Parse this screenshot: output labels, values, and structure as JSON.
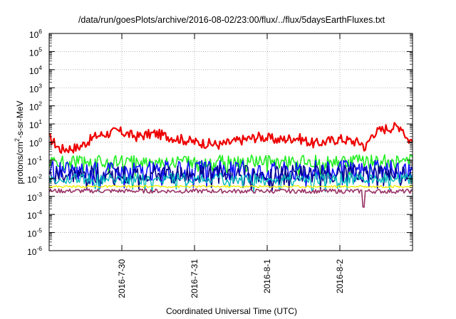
{
  "chart_data": {
    "type": "line",
    "title": "/data/run/goesPlots/archive/2016-08-02/23:00/flux/../flux/5daysEarthFluxes.txt",
    "xlabel": "Coordinated Universal Time (UTC)",
    "ylabel": "protons/cm²-s-sr-MeV",
    "ylabel_base": "protons/cm",
    "ylabel_sup": "2",
    "ylabel_rest": "-s-sr-MeV",
    "y_scale": "log",
    "ylim_exponent": [
      -6,
      6
    ],
    "ytick_base": "10",
    "ytick_exponents": [
      "-6",
      "-5",
      "-4",
      "-3",
      "-2",
      "-1",
      "0",
      "1",
      "2",
      "3",
      "4",
      "5",
      "6"
    ],
    "xlim": [
      "2016-07-29 00:00",
      "2016-08-03 00:00"
    ],
    "xtick_labels": [
      "2016-7-30",
      "2016-7-31",
      "2016-8-1",
      "2016-8-2"
    ],
    "grid": true,
    "legend": "none",
    "colors": {
      "red": "#ee0000",
      "green": "#22ee22",
      "blue": "#1010ff",
      "darkblue": "#00008b",
      "cyan": "#00bbbb",
      "yellow": "#eeee00",
      "purple": "#993366"
    },
    "series": [
      {
        "color_key": "red",
        "approx_level": 1.0,
        "profile": [
          [
            0.0,
            1.8
          ],
          [
            0.03,
            0.4
          ],
          [
            0.08,
            0.5
          ],
          [
            0.13,
            2.2
          ],
          [
            0.19,
            4.0
          ],
          [
            0.24,
            2.0
          ],
          [
            0.29,
            3.0
          ],
          [
            0.34,
            1.8
          ],
          [
            0.4,
            1.0
          ],
          [
            0.47,
            0.7
          ],
          [
            0.53,
            1.3
          ],
          [
            0.58,
            2.0
          ],
          [
            0.63,
            1.3
          ],
          [
            0.68,
            1.8
          ],
          [
            0.73,
            0.8
          ],
          [
            0.8,
            1.5
          ],
          [
            0.86,
            0.9
          ],
          [
            0.87,
            0.45
          ],
          [
            0.89,
            3.0
          ],
          [
            0.93,
            6.0
          ],
          [
            0.97,
            7.5
          ],
          [
            0.985,
            1.5
          ],
          [
            1.0,
            1.1
          ]
        ]
      },
      {
        "color_key": "green",
        "approx_level": 0.1,
        "profile": [
          [
            0.0,
            0.08
          ],
          [
            1.0,
            0.09
          ]
        ]
      },
      {
        "color_key": "blue",
        "approx_level": 0.03,
        "profile": [
          [
            0.0,
            0.025
          ],
          [
            1.0,
            0.03
          ]
        ]
      },
      {
        "color_key": "darkblue",
        "approx_level": 0.02,
        "profile": [
          [
            0.0,
            0.015
          ],
          [
            1.0,
            0.018
          ]
        ]
      },
      {
        "color_key": "cyan",
        "approx_level": 0.01,
        "profile": [
          [
            0.0,
            0.009
          ],
          [
            1.0,
            0.01
          ]
        ]
      },
      {
        "color_key": "yellow",
        "approx_level": 0.004,
        "profile": [
          [
            0.0,
            0.0035
          ],
          [
            1.0,
            0.0035
          ]
        ]
      },
      {
        "color_key": "purple",
        "approx_level": 0.002,
        "profile": [
          [
            0.0,
            0.002
          ],
          [
            1.0,
            0.0019
          ]
        ]
      }
    ]
  }
}
